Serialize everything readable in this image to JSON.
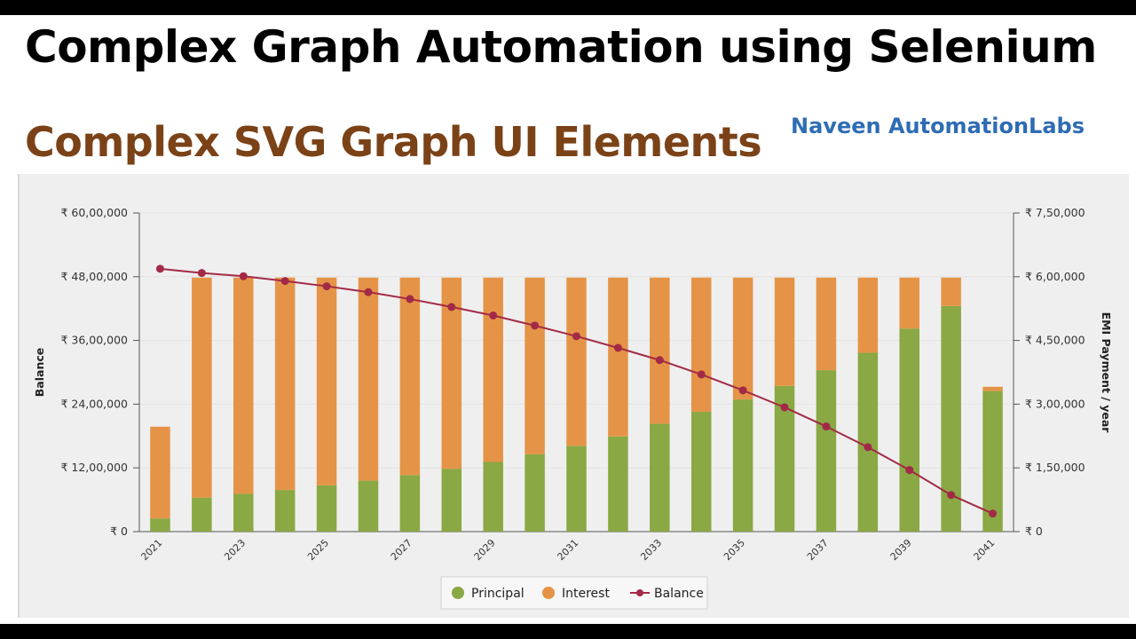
{
  "header": {
    "title": "Complex Graph Automation using Selenium",
    "subtitle": "Complex SVG Graph UI Elements",
    "brand": "Naveen AutomationLabs"
  },
  "colors": {
    "principal": "#8aa843",
    "interest": "#e59447",
    "balance": "#a32a47"
  },
  "chart_data": {
    "type": "bar",
    "stacked": true,
    "categories": [
      "2021",
      "2022",
      "2023",
      "2024",
      "2025",
      "2026",
      "2027",
      "2028",
      "2029",
      "2030",
      "2031",
      "2032",
      "2033",
      "2034",
      "2035",
      "2036",
      "2037",
      "2038",
      "2039",
      "2040",
      "2041"
    ],
    "x_tick_labels": [
      "2021",
      "2023",
      "2025",
      "2027",
      "2029",
      "2031",
      "2033",
      "2035",
      "2037",
      "2039",
      "2041"
    ],
    "ylabel": "Balance",
    "ylabel_right": "EMI Payment / year",
    "ylim": [
      0,
      6000000
    ],
    "ylim_right": [
      0,
      750000
    ],
    "y_ticks_left": [
      "₹ 0",
      "₹ 12,00,000",
      "₹ 24,00,000",
      "₹ 36,00,000",
      "₹ 48,00,000",
      "₹ 60,00,000"
    ],
    "y_ticks_right": [
      "₹ 0",
      "₹ 1,50,000",
      "₹ 3,00,000",
      "₹ 4,50,000",
      "₹ 6,00,000",
      "₹ 7,50,000"
    ],
    "series": [
      {
        "name": "Principal",
        "type": "bar",
        "axis": "right",
        "values": [
          31000,
          80000,
          89000,
          98000,
          109000,
          120000,
          133000,
          148000,
          164000,
          182000,
          202000,
          224000,
          254000,
          282000,
          311000,
          343000,
          380000,
          421000,
          478000,
          531000,
          331000
        ]
      },
      {
        "name": "Interest",
        "type": "bar",
        "axis": "right",
        "values": [
          216000,
          518000,
          509000,
          500000,
          489000,
          478000,
          465000,
          450000,
          434000,
          416000,
          396000,
          374000,
          344000,
          316000,
          287000,
          255000,
          218000,
          177000,
          120000,
          67000,
          10000
        ]
      },
      {
        "name": "Balance",
        "type": "line",
        "axis": "left",
        "values": [
          4950000,
          4870000,
          4810000,
          4720000,
          4620000,
          4510000,
          4380000,
          4230000,
          4070000,
          3880000,
          3680000,
          3460000,
          3230000,
          2960000,
          2660000,
          2340000,
          1980000,
          1590000,
          1160000,
          690000,
          340000
        ]
      }
    ],
    "legend": {
      "position": "bottom-center",
      "entries": [
        "Principal",
        "Interest",
        "Balance"
      ]
    },
    "grid": true
  }
}
